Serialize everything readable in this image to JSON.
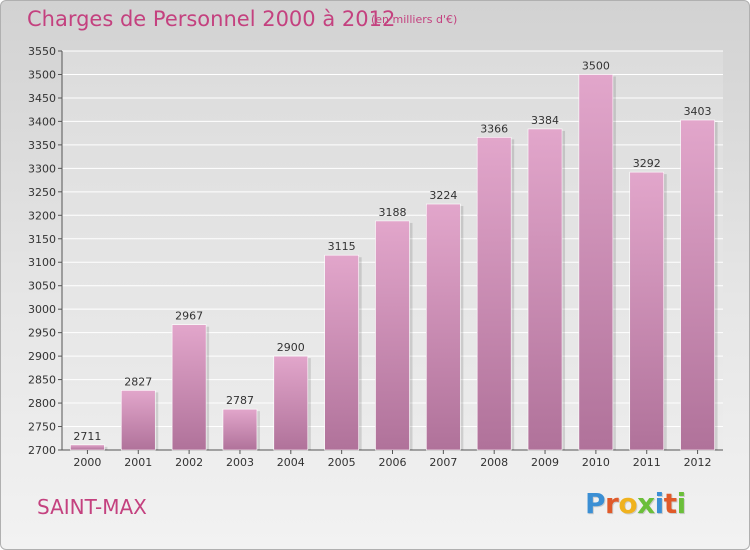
{
  "header": {
    "title": "Charges de Personnel 2000 à 2012",
    "subtitle": "(en milliers d'€)"
  },
  "footer": {
    "commune": "SAINT-MAX",
    "logo_letters": [
      "P",
      "r",
      "o",
      "x",
      "i",
      "t",
      "i"
    ]
  },
  "colors": {
    "title": "#c4417f",
    "bar_top": "#e2a6cb",
    "bar_bottom": "#b0729a",
    "logo": [
      "#3b8fd4",
      "#e05a2a",
      "#f0b21e",
      "#6bbf3a",
      "#3b8fd4",
      "#e05a2a",
      "#6bbf3a"
    ]
  },
  "chart_data": {
    "type": "bar",
    "title": "Charges de Personnel 2000 à 2012",
    "subtitle": "(en milliers d'€)",
    "categories": [
      "2000",
      "2001",
      "2002",
      "2003",
      "2004",
      "2005",
      "2006",
      "2007",
      "2008",
      "2009",
      "2010",
      "2011",
      "2012"
    ],
    "values": [
      2711,
      2827,
      2967,
      2787,
      2900,
      3115,
      3188,
      3224,
      3366,
      3384,
      3500,
      3292,
      3403
    ],
    "ylim": [
      2700,
      3550
    ],
    "yticks": [
      2700,
      2750,
      2800,
      2850,
      2900,
      2950,
      3000,
      3050,
      3100,
      3150,
      3200,
      3250,
      3300,
      3350,
      3400,
      3450,
      3500,
      3550
    ],
    "grid": true
  }
}
